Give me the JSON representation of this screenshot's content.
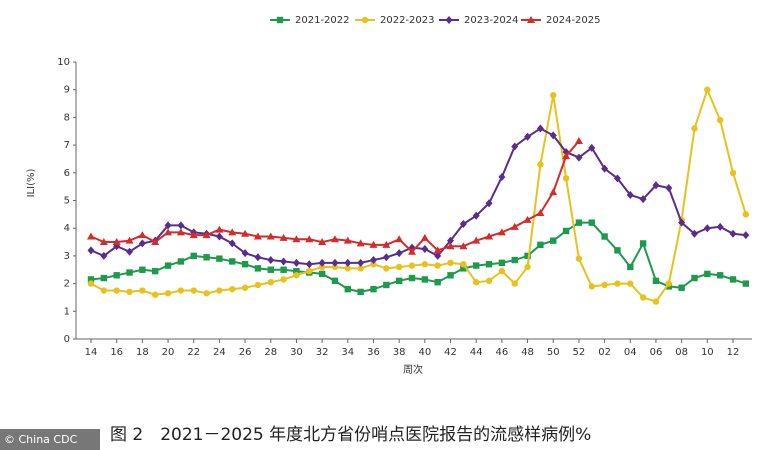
{
  "chart_data": {
    "type": "line",
    "x_label": "周次",
    "y_label": "ILI(%)",
    "caption": "图 2　2021－2025 年度北方省份哨点医院报告的流感样病例%",
    "watermark": "© China CDC",
    "categories": [
      "14",
      null,
      "16",
      null,
      "18",
      null,
      "20",
      null,
      "22",
      null,
      "24",
      null,
      "26",
      null,
      "28",
      null,
      "30",
      null,
      "32",
      null,
      "34",
      null,
      "36",
      null,
      "38",
      null,
      "40",
      null,
      "42",
      null,
      "44",
      null,
      "46",
      null,
      "48",
      null,
      "50",
      null,
      "52",
      null,
      "02",
      null,
      "04",
      null,
      "06",
      null,
      "08",
      null,
      "10",
      null,
      "12",
      null
    ],
    "ylim": [
      0,
      10
    ],
    "yticks": [
      0,
      1,
      2,
      3,
      4,
      5,
      6,
      7,
      8,
      9,
      10
    ],
    "grid": false,
    "legend": "top",
    "series": [
      {
        "name": "2021-2022",
        "color": "#1e9a4c",
        "marker": "square",
        "values": [
          2.15,
          2.2,
          2.3,
          2.4,
          2.5,
          2.45,
          2.65,
          2.8,
          3.0,
          2.95,
          2.9,
          2.8,
          2.7,
          2.55,
          2.5,
          2.5,
          2.45,
          2.4,
          2.35,
          2.1,
          1.8,
          1.7,
          1.8,
          1.95,
          2.1,
          2.2,
          2.15,
          2.05,
          2.3,
          2.55,
          2.65,
          2.7,
          2.75,
          2.85,
          3.0,
          3.4,
          3.55,
          3.9,
          4.2,
          4.2,
          3.7,
          3.2,
          2.6,
          3.45,
          2.1,
          1.9,
          1.85,
          2.2,
          2.35,
          2.3,
          2.15,
          2.0
        ]
      },
      {
        "name": "2022-2023",
        "color": "#e8c21c",
        "marker": "circle",
        "values": [
          2.0,
          1.75,
          1.75,
          1.7,
          1.75,
          1.6,
          1.65,
          1.75,
          1.75,
          1.65,
          1.75,
          1.8,
          1.85,
          1.95,
          2.05,
          2.15,
          2.3,
          2.45,
          2.6,
          2.6,
          2.55,
          2.55,
          2.7,
          2.55,
          2.6,
          2.65,
          2.7,
          2.65,
          2.75,
          2.7,
          2.05,
          2.1,
          2.45,
          2.0,
          2.6,
          6.3,
          8.8,
          5.8,
          2.9,
          1.9,
          1.95,
          2.0,
          2.0,
          1.5,
          1.35,
          2.0,
          4.3,
          7.6,
          9.0,
          7.9,
          6.0,
          4.5
        ]
      },
      {
        "name": "2023-2024",
        "color": "#5a2d8c",
        "marker": "diamond",
        "values": [
          3.2,
          3.0,
          3.35,
          3.15,
          3.45,
          3.55,
          4.1,
          4.1,
          3.85,
          3.8,
          3.7,
          3.45,
          3.1,
          2.95,
          2.85,
          2.8,
          2.75,
          2.7,
          2.75,
          2.75,
          2.75,
          2.75,
          2.85,
          2.95,
          3.1,
          3.3,
          3.25,
          3.0,
          3.55,
          4.15,
          4.45,
          4.9,
          5.85,
          6.95,
          7.3,
          7.6,
          7.35,
          6.75,
          6.55,
          6.9,
          6.15,
          5.8,
          5.2,
          5.05,
          5.55,
          5.45,
          4.2,
          3.8,
          4.0,
          4.05,
          3.8,
          3.75
        ]
      },
      {
        "name": "2024-2025",
        "color": "#d42b2b",
        "marker": "triangle",
        "values": [
          3.7,
          3.5,
          3.5,
          3.55,
          3.75,
          3.5,
          3.85,
          3.85,
          3.75,
          3.75,
          3.95,
          3.85,
          3.8,
          3.7,
          3.7,
          3.65,
          3.6,
          3.6,
          3.5,
          3.6,
          3.55,
          3.45,
          3.4,
          3.4,
          3.6,
          3.15,
          3.65,
          3.2,
          3.35,
          3.35,
          3.55,
          3.7,
          3.85,
          4.05,
          4.3,
          4.55,
          5.3,
          6.6,
          7.15,
          null,
          null,
          null,
          null,
          null,
          null,
          null,
          null,
          null,
          null,
          null,
          null,
          null
        ]
      }
    ]
  }
}
